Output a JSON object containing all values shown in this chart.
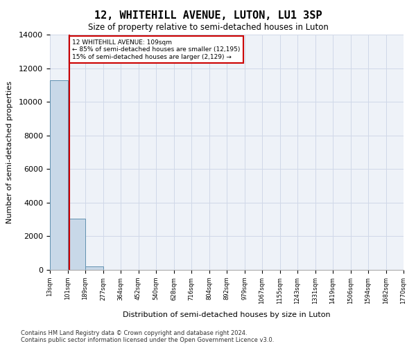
{
  "title": "12, WHITEHILL AVENUE, LUTON, LU1 3SP",
  "subtitle": "Size of property relative to semi-detached houses in Luton",
  "xlabel": "Distribution of semi-detached houses by size in Luton",
  "ylabel": "Number of semi-detached properties",
  "bar_values": [
    11300,
    3050,
    200,
    0,
    0,
    0,
    0,
    0,
    0,
    0,
    0,
    0,
    0,
    0,
    0,
    0,
    0,
    0,
    0,
    0
  ],
  "bar_labels": [
    "13sqm",
    "101sqm",
    "189sqm",
    "277sqm",
    "364sqm",
    "452sqm",
    "540sqm",
    "628sqm",
    "716sqm",
    "804sqm",
    "892sqm",
    "979sqm",
    "1067sqm",
    "1155sqm",
    "1243sqm",
    "1331sqm",
    "1419sqm",
    "1506sqm",
    "1594sqm",
    "1682sqm",
    "1770sqm"
  ],
  "bar_color": "#c8d8e8",
  "bar_edge_color": "#6090b0",
  "grid_color": "#d0d8e8",
  "bg_color": "#eef2f8",
  "property_line_x": 1.09,
  "property_line_color": "#cc0000",
  "annotation_text": "12 WHITEHILL AVENUE: 109sqm\n← 85% of semi-detached houses are smaller (12,195)\n15% of semi-detached houses are larger (2,129) →",
  "annotation_box_color": "#cc0000",
  "ylim": [
    0,
    14000
  ],
  "yticks": [
    0,
    2000,
    4000,
    6000,
    8000,
    10000,
    12000,
    14000
  ],
  "footnote1": "Contains HM Land Registry data © Crown copyright and database right 2024.",
  "footnote2": "Contains public sector information licensed under the Open Government Licence v3.0."
}
